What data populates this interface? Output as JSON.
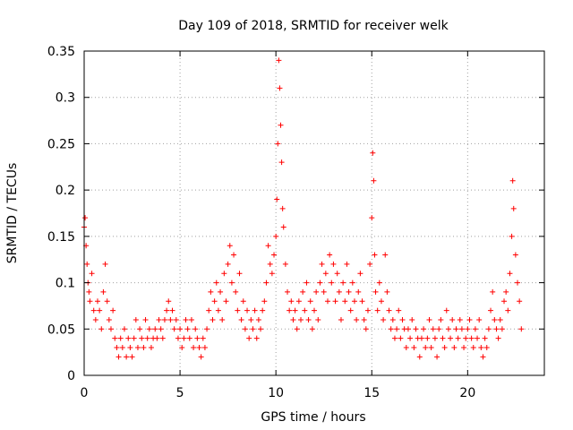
{
  "chart_data": {
    "type": "scatter",
    "title": "Day 109 of 2018, SRMTID for receiver welk",
    "xlabel": "GPS time / hours",
    "ylabel": "SRMTID / TECUs",
    "xlim": [
      0,
      24
    ],
    "ylim": [
      0,
      0.35
    ],
    "x_ticks": [
      0,
      5,
      10,
      15,
      20
    ],
    "x_tick_labels": [
      "0",
      "5",
      "10",
      "15",
      "20"
    ],
    "y_ticks": [
      0,
      0.05,
      0.1,
      0.15,
      0.2,
      0.25,
      0.3,
      0.35
    ],
    "y_tick_labels": [
      "0",
      "0.05",
      "0.1",
      "0.15",
      "0.2",
      "0.25",
      "0.3",
      "0.35"
    ],
    "grid": true,
    "marker": "+",
    "color": "#ff0000",
    "series": [
      {
        "name": "SRMTID",
        "points": [
          [
            0.0,
            0.16
          ],
          [
            0.05,
            0.17
          ],
          [
            0.1,
            0.14
          ],
          [
            0.15,
            0.12
          ],
          [
            0.2,
            0.1
          ],
          [
            0.25,
            0.09
          ],
          [
            0.3,
            0.08
          ],
          [
            0.4,
            0.11
          ],
          [
            0.5,
            0.07
          ],
          [
            0.6,
            0.06
          ],
          [
            0.7,
            0.08
          ],
          [
            0.8,
            0.07
          ],
          [
            0.9,
            0.05
          ],
          [
            1.0,
            0.09
          ],
          [
            1.1,
            0.12
          ],
          [
            1.2,
            0.08
          ],
          [
            1.3,
            0.06
          ],
          [
            1.4,
            0.05
          ],
          [
            1.5,
            0.07
          ],
          [
            1.6,
            0.04
          ],
          [
            1.7,
            0.03
          ],
          [
            1.8,
            0.02
          ],
          [
            1.9,
            0.04
          ],
          [
            2.0,
            0.03
          ],
          [
            2.1,
            0.05
          ],
          [
            2.2,
            0.02
          ],
          [
            2.3,
            0.04
          ],
          [
            2.4,
            0.03
          ],
          [
            2.5,
            0.02
          ],
          [
            2.6,
            0.04
          ],
          [
            2.7,
            0.06
          ],
          [
            2.8,
            0.03
          ],
          [
            2.9,
            0.05
          ],
          [
            3.0,
            0.04
          ],
          [
            3.1,
            0.03
          ],
          [
            3.2,
            0.06
          ],
          [
            3.3,
            0.04
          ],
          [
            3.4,
            0.05
          ],
          [
            3.5,
            0.03
          ],
          [
            3.6,
            0.04
          ],
          [
            3.7,
            0.05
          ],
          [
            3.8,
            0.04
          ],
          [
            3.9,
            0.06
          ],
          [
            4.0,
            0.05
          ],
          [
            4.1,
            0.04
          ],
          [
            4.2,
            0.06
          ],
          [
            4.3,
            0.07
          ],
          [
            4.4,
            0.08
          ],
          [
            4.5,
            0.06
          ],
          [
            4.6,
            0.07
          ],
          [
            4.7,
            0.05
          ],
          [
            4.8,
            0.06
          ],
          [
            4.9,
            0.04
          ],
          [
            5.0,
            0.05
          ],
          [
            5.1,
            0.03
          ],
          [
            5.2,
            0.04
          ],
          [
            5.3,
            0.06
          ],
          [
            5.4,
            0.05
          ],
          [
            5.5,
            0.04
          ],
          [
            5.6,
            0.06
          ],
          [
            5.7,
            0.03
          ],
          [
            5.8,
            0.05
          ],
          [
            5.9,
            0.04
          ],
          [
            6.0,
            0.03
          ],
          [
            6.1,
            0.02
          ],
          [
            6.2,
            0.04
          ],
          [
            6.3,
            0.03
          ],
          [
            6.4,
            0.05
          ],
          [
            6.5,
            0.07
          ],
          [
            6.6,
            0.09
          ],
          [
            6.7,
            0.06
          ],
          [
            6.8,
            0.08
          ],
          [
            6.9,
            0.1
          ],
          [
            7.0,
            0.07
          ],
          [
            7.1,
            0.09
          ],
          [
            7.2,
            0.06
          ],
          [
            7.3,
            0.11
          ],
          [
            7.4,
            0.08
          ],
          [
            7.5,
            0.12
          ],
          [
            7.6,
            0.14
          ],
          [
            7.7,
            0.1
          ],
          [
            7.8,
            0.13
          ],
          [
            7.9,
            0.09
          ],
          [
            8.0,
            0.07
          ],
          [
            8.1,
            0.11
          ],
          [
            8.2,
            0.06
          ],
          [
            8.3,
            0.08
          ],
          [
            8.4,
            0.05
          ],
          [
            8.5,
            0.07
          ],
          [
            8.6,
            0.04
          ],
          [
            8.7,
            0.06
          ],
          [
            8.8,
            0.05
          ],
          [
            8.9,
            0.07
          ],
          [
            9.0,
            0.04
          ],
          [
            9.1,
            0.06
          ],
          [
            9.2,
            0.05
          ],
          [
            9.3,
            0.07
          ],
          [
            9.4,
            0.08
          ],
          [
            9.5,
            0.1
          ],
          [
            9.6,
            0.14
          ],
          [
            9.7,
            0.12
          ],
          [
            9.8,
            0.11
          ],
          [
            9.9,
            0.13
          ],
          [
            10.0,
            0.15
          ],
          [
            10.05,
            0.19
          ],
          [
            10.1,
            0.25
          ],
          [
            10.15,
            0.34
          ],
          [
            10.2,
            0.31
          ],
          [
            10.25,
            0.27
          ],
          [
            10.3,
            0.23
          ],
          [
            10.35,
            0.18
          ],
          [
            10.4,
            0.16
          ],
          [
            10.5,
            0.12
          ],
          [
            10.6,
            0.09
          ],
          [
            10.7,
            0.07
          ],
          [
            10.8,
            0.08
          ],
          [
            10.9,
            0.06
          ],
          [
            11.0,
            0.07
          ],
          [
            11.1,
            0.05
          ],
          [
            11.2,
            0.08
          ],
          [
            11.3,
            0.06
          ],
          [
            11.4,
            0.09
          ],
          [
            11.5,
            0.07
          ],
          [
            11.6,
            0.1
          ],
          [
            11.7,
            0.06
          ],
          [
            11.8,
            0.08
          ],
          [
            11.9,
            0.05
          ],
          [
            12.0,
            0.07
          ],
          [
            12.1,
            0.09
          ],
          [
            12.2,
            0.06
          ],
          [
            12.3,
            0.1
          ],
          [
            12.4,
            0.12
          ],
          [
            12.5,
            0.09
          ],
          [
            12.6,
            0.11
          ],
          [
            12.7,
            0.08
          ],
          [
            12.8,
            0.13
          ],
          [
            12.9,
            0.1
          ],
          [
            13.0,
            0.12
          ],
          [
            13.1,
            0.08
          ],
          [
            13.2,
            0.11
          ],
          [
            13.3,
            0.09
          ],
          [
            13.4,
            0.06
          ],
          [
            13.5,
            0.1
          ],
          [
            13.6,
            0.08
          ],
          [
            13.7,
            0.12
          ],
          [
            13.8,
            0.09
          ],
          [
            13.9,
            0.07
          ],
          [
            14.0,
            0.1
          ],
          [
            14.1,
            0.08
          ],
          [
            14.2,
            0.06
          ],
          [
            14.3,
            0.09
          ],
          [
            14.4,
            0.11
          ],
          [
            14.5,
            0.08
          ],
          [
            14.6,
            0.06
          ],
          [
            14.7,
            0.05
          ],
          [
            14.8,
            0.07
          ],
          [
            14.9,
            0.12
          ],
          [
            15.0,
            0.17
          ],
          [
            15.05,
            0.24
          ],
          [
            15.1,
            0.21
          ],
          [
            15.15,
            0.13
          ],
          [
            15.2,
            0.09
          ],
          [
            15.3,
            0.07
          ],
          [
            15.4,
            0.1
          ],
          [
            15.5,
            0.08
          ],
          [
            15.6,
            0.06
          ],
          [
            15.7,
            0.13
          ],
          [
            15.8,
            0.09
          ],
          [
            15.9,
            0.07
          ],
          [
            16.0,
            0.05
          ],
          [
            16.1,
            0.06
          ],
          [
            16.2,
            0.04
          ],
          [
            16.3,
            0.05
          ],
          [
            16.4,
            0.07
          ],
          [
            16.5,
            0.04
          ],
          [
            16.6,
            0.06
          ],
          [
            16.7,
            0.05
          ],
          [
            16.8,
            0.03
          ],
          [
            16.9,
            0.05
          ],
          [
            17.0,
            0.04
          ],
          [
            17.1,
            0.06
          ],
          [
            17.2,
            0.03
          ],
          [
            17.3,
            0.05
          ],
          [
            17.4,
            0.04
          ],
          [
            17.5,
            0.02
          ],
          [
            17.6,
            0.04
          ],
          [
            17.7,
            0.05
          ],
          [
            17.8,
            0.03
          ],
          [
            17.9,
            0.04
          ],
          [
            18.0,
            0.06
          ],
          [
            18.1,
            0.03
          ],
          [
            18.2,
            0.05
          ],
          [
            18.3,
            0.04
          ],
          [
            18.4,
            0.02
          ],
          [
            18.5,
            0.05
          ],
          [
            18.6,
            0.06
          ],
          [
            18.7,
            0.04
          ],
          [
            18.8,
            0.03
          ],
          [
            18.9,
            0.07
          ],
          [
            19.0,
            0.05
          ],
          [
            19.1,
            0.04
          ],
          [
            19.2,
            0.06
          ],
          [
            19.3,
            0.03
          ],
          [
            19.4,
            0.05
          ],
          [
            19.5,
            0.04
          ],
          [
            19.6,
            0.06
          ],
          [
            19.7,
            0.05
          ],
          [
            19.8,
            0.03
          ],
          [
            19.9,
            0.04
          ],
          [
            20.0,
            0.05
          ],
          [
            20.1,
            0.06
          ],
          [
            20.2,
            0.04
          ],
          [
            20.3,
            0.03
          ],
          [
            20.4,
            0.05
          ],
          [
            20.5,
            0.04
          ],
          [
            20.6,
            0.06
          ],
          [
            20.7,
            0.03
          ],
          [
            20.8,
            0.02
          ],
          [
            20.9,
            0.04
          ],
          [
            21.0,
            0.03
          ],
          [
            21.1,
            0.05
          ],
          [
            21.2,
            0.07
          ],
          [
            21.3,
            0.09
          ],
          [
            21.4,
            0.06
          ],
          [
            21.5,
            0.05
          ],
          [
            21.6,
            0.04
          ],
          [
            21.7,
            0.06
          ],
          [
            21.8,
            0.05
          ],
          [
            21.9,
            0.08
          ],
          [
            22.0,
            0.09
          ],
          [
            22.1,
            0.07
          ],
          [
            22.2,
            0.11
          ],
          [
            22.3,
            0.15
          ],
          [
            22.35,
            0.21
          ],
          [
            22.4,
            0.18
          ],
          [
            22.5,
            0.13
          ],
          [
            22.6,
            0.1
          ],
          [
            22.7,
            0.08
          ],
          [
            22.8,
            0.05
          ]
        ]
      }
    ]
  }
}
